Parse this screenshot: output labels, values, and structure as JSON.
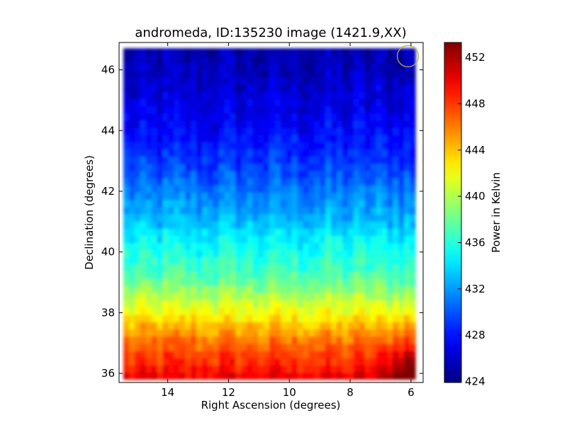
{
  "chart_data": {
    "type": "heatmap",
    "title": "andromeda, ID:135230 image (1421.9,XX)",
    "xlabel": "Right Ascension (degrees)",
    "ylabel": "Declination (degrees)",
    "xlim": [
      15.6,
      5.6
    ],
    "ylim": [
      35.7,
      46.9
    ],
    "x_ticks": [
      14,
      12,
      10,
      8,
      6
    ],
    "y_ticks": [
      36,
      38,
      40,
      42,
      44,
      46
    ],
    "data_extent": {
      "x": [
        15.45,
        5.85
      ],
      "y": [
        35.8,
        46.7
      ]
    },
    "colorbar": {
      "label": "Power in Kelvin",
      "range": [
        423.9,
        453.3
      ],
      "ticks": [
        424,
        428,
        432,
        436,
        440,
        444,
        448,
        452
      ],
      "colormap": "jet"
    },
    "dec_profile": {
      "dec": [
        35.8,
        36.0,
        36.5,
        37.0,
        37.5,
        38.0,
        38.5,
        39.0,
        39.5,
        40.0,
        40.5,
        41.0,
        41.5,
        42.0,
        42.5,
        43.0,
        44.0,
        45.0,
        46.0,
        46.7
      ],
      "power_kelvin": [
        450.5,
        449.5,
        448.0,
        446.5,
        444.5,
        442.0,
        440.0,
        438.0,
        436.5,
        435.5,
        434.5,
        433.0,
        432.0,
        431.0,
        430.0,
        429.0,
        427.5,
        426.5,
        425.5,
        425.0
      ]
    },
    "hotspot": {
      "ra": 6.1,
      "dec": 36.0,
      "power_kelvin": 453.0
    },
    "beam_marker": {
      "ra": 6.1,
      "dec": 46.45,
      "radius_deg": 0.35,
      "color": "#c8b432"
    },
    "grid": false
  }
}
